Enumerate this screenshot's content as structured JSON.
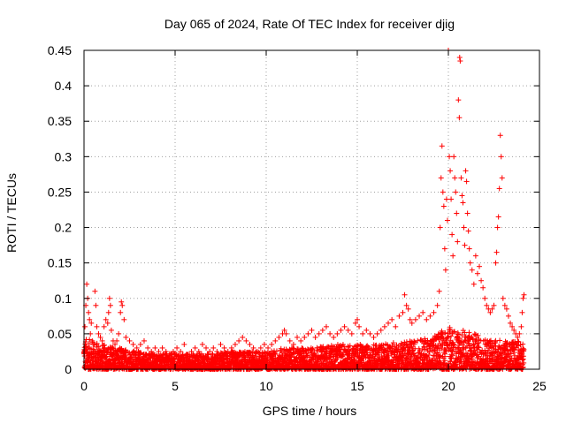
{
  "chart_data": {
    "type": "scatter",
    "title": "Day 065 of 2024, Rate Of TEC Index for receiver djig",
    "xlabel": "GPS time / hours",
    "ylabel": "ROTI / TECUs",
    "xlim": [
      0,
      25
    ],
    "ylim": [
      0,
      0.45
    ],
    "xticks": [
      0,
      5,
      10,
      15,
      20,
      25
    ],
    "xtick_labels": [
      "0",
      "5",
      "10",
      "15",
      "20",
      "25"
    ],
    "yticks": [
      0,
      0.05,
      0.1,
      0.15,
      0.2,
      0.25,
      0.3,
      0.35,
      0.4,
      0.45
    ],
    "ytick_labels": [
      "0",
      "0.05",
      "0.1",
      "0.15",
      "0.2",
      "0.25",
      "0.3",
      "0.35",
      "0.4",
      "0.45"
    ],
    "grid": true,
    "marker": "+",
    "color": "#ff0000",
    "series": [
      {
        "name": "ROTI",
        "points": [
          [
            0.05,
            0.06
          ],
          [
            0.1,
            0.09
          ],
          [
            0.15,
            0.12
          ],
          [
            0.2,
            0.1
          ],
          [
            0.25,
            0.08
          ],
          [
            0.3,
            0.07
          ],
          [
            0.35,
            0.05
          ],
          [
            0.4,
            0.065
          ],
          [
            0.45,
            0.04
          ],
          [
            0.5,
            0.035
          ],
          [
            0.6,
            0.11
          ],
          [
            0.65,
            0.09
          ],
          [
            0.7,
            0.06
          ],
          [
            0.8,
            0.05
          ],
          [
            0.9,
            0.045
          ],
          [
            1.0,
            0.04
          ],
          [
            1.1,
            0.06
          ],
          [
            1.2,
            0.07
          ],
          [
            1.3,
            0.065
          ],
          [
            1.35,
            0.08
          ],
          [
            1.4,
            0.1
          ],
          [
            1.45,
            0.09
          ],
          [
            1.5,
            0.055
          ],
          [
            1.6,
            0.04
          ],
          [
            1.7,
            0.035
          ],
          [
            1.8,
            0.04
          ],
          [
            1.9,
            0.05
          ],
          [
            2.0,
            0.08
          ],
          [
            2.05,
            0.095
          ],
          [
            2.1,
            0.09
          ],
          [
            2.2,
            0.07
          ],
          [
            2.3,
            0.045
          ],
          [
            2.5,
            0.04
          ],
          [
            2.7,
            0.035
          ],
          [
            2.9,
            0.03
          ],
          [
            3.1,
            0.035
          ],
          [
            3.3,
            0.04
          ],
          [
            3.5,
            0.03
          ],
          [
            3.7,
            0.025
          ],
          [
            3.9,
            0.03
          ],
          [
            4.1,
            0.025
          ],
          [
            4.3,
            0.03
          ],
          [
            4.5,
            0.025
          ],
          [
            4.7,
            0.02
          ],
          [
            4.9,
            0.025
          ],
          [
            5.1,
            0.03
          ],
          [
            5.3,
            0.025
          ],
          [
            5.5,
            0.035
          ],
          [
            5.7,
            0.02
          ],
          [
            5.9,
            0.025
          ],
          [
            6.1,
            0.03
          ],
          [
            6.3,
            0.025
          ],
          [
            6.5,
            0.035
          ],
          [
            6.7,
            0.03
          ],
          [
            6.9,
            0.025
          ],
          [
            7.1,
            0.03
          ],
          [
            7.3,
            0.025
          ],
          [
            7.5,
            0.035
          ],
          [
            7.7,
            0.03
          ],
          [
            7.9,
            0.025
          ],
          [
            8.1,
            0.03
          ],
          [
            8.3,
            0.035
          ],
          [
            8.5,
            0.04
          ],
          [
            8.7,
            0.045
          ],
          [
            8.9,
            0.04
          ],
          [
            9.1,
            0.035
          ],
          [
            9.3,
            0.03
          ],
          [
            9.5,
            0.025
          ],
          [
            9.7,
            0.03
          ],
          [
            9.9,
            0.035
          ],
          [
            10.1,
            0.03
          ],
          [
            10.3,
            0.035
          ],
          [
            10.5,
            0.04
          ],
          [
            10.7,
            0.045
          ],
          [
            10.9,
            0.05
          ],
          [
            11.0,
            0.055
          ],
          [
            11.1,
            0.05
          ],
          [
            11.3,
            0.04
          ],
          [
            11.5,
            0.035
          ],
          [
            11.7,
            0.045
          ],
          [
            11.9,
            0.04
          ],
          [
            12.1,
            0.045
          ],
          [
            12.3,
            0.05
          ],
          [
            12.5,
            0.055
          ],
          [
            12.7,
            0.045
          ],
          [
            12.9,
            0.05
          ],
          [
            13.1,
            0.055
          ],
          [
            13.3,
            0.06
          ],
          [
            13.5,
            0.05
          ],
          [
            13.7,
            0.045
          ],
          [
            13.9,
            0.05
          ],
          [
            14.1,
            0.055
          ],
          [
            14.3,
            0.06
          ],
          [
            14.5,
            0.055
          ],
          [
            14.7,
            0.05
          ],
          [
            14.9,
            0.065
          ],
          [
            15.0,
            0.07
          ],
          [
            15.1,
            0.06
          ],
          [
            15.3,
            0.05
          ],
          [
            15.5,
            0.055
          ],
          [
            15.7,
            0.05
          ],
          [
            15.9,
            0.045
          ],
          [
            16.1,
            0.05
          ],
          [
            16.3,
            0.055
          ],
          [
            16.5,
            0.06
          ],
          [
            16.7,
            0.065
          ],
          [
            16.9,
            0.07
          ],
          [
            17.1,
            0.06
          ],
          [
            17.3,
            0.075
          ],
          [
            17.5,
            0.08
          ],
          [
            17.6,
            0.105
          ],
          [
            17.7,
            0.09
          ],
          [
            17.8,
            0.085
          ],
          [
            17.9,
            0.07
          ],
          [
            18.0,
            0.065
          ],
          [
            18.2,
            0.07
          ],
          [
            18.4,
            0.075
          ],
          [
            18.6,
            0.08
          ],
          [
            18.8,
            0.07
          ],
          [
            19.0,
            0.075
          ],
          [
            19.2,
            0.08
          ],
          [
            19.4,
            0.09
          ],
          [
            19.5,
            0.11
          ],
          [
            19.55,
            0.2
          ],
          [
            19.6,
            0.27
          ],
          [
            19.65,
            0.315
          ],
          [
            19.7,
            0.25
          ],
          [
            19.75,
            0.23
          ],
          [
            19.8,
            0.17
          ],
          [
            19.85,
            0.14
          ],
          [
            19.9,
            0.24
          ],
          [
            19.95,
            0.21
          ],
          [
            20.0,
            0.45
          ],
          [
            20.05,
            0.3
          ],
          [
            20.1,
            0.28
          ],
          [
            20.15,
            0.24
          ],
          [
            20.2,
            0.19
          ],
          [
            20.25,
            0.16
          ],
          [
            20.3,
            0.3
          ],
          [
            20.35,
            0.27
          ],
          [
            20.4,
            0.25
          ],
          [
            20.45,
            0.22
          ],
          [
            20.5,
            0.18
          ],
          [
            20.55,
            0.38
          ],
          [
            20.6,
            0.355
          ],
          [
            20.62,
            0.44
          ],
          [
            20.65,
            0.435
          ],
          [
            20.7,
            0.27
          ],
          [
            20.75,
            0.245
          ],
          [
            20.8,
            0.235
          ],
          [
            20.85,
            0.2
          ],
          [
            20.9,
            0.175
          ],
          [
            20.95,
            0.28
          ],
          [
            21.0,
            0.265
          ],
          [
            21.05,
            0.22
          ],
          [
            21.1,
            0.195
          ],
          [
            21.15,
            0.17
          ],
          [
            21.2,
            0.15
          ],
          [
            21.3,
            0.14
          ],
          [
            21.4,
            0.12
          ],
          [
            21.5,
            0.16
          ],
          [
            21.6,
            0.135
          ],
          [
            21.7,
            0.145
          ],
          [
            21.8,
            0.125
          ],
          [
            21.9,
            0.115
          ],
          [
            22.0,
            0.1
          ],
          [
            22.1,
            0.09
          ],
          [
            22.2,
            0.085
          ],
          [
            22.3,
            0.08
          ],
          [
            22.4,
            0.085
          ],
          [
            22.5,
            0.09
          ],
          [
            22.6,
            0.15
          ],
          [
            22.65,
            0.165
          ],
          [
            22.7,
            0.2
          ],
          [
            22.75,
            0.215
          ],
          [
            22.8,
            0.255
          ],
          [
            22.85,
            0.33
          ],
          [
            22.9,
            0.3
          ],
          [
            22.95,
            0.27
          ],
          [
            23.0,
            0.1
          ],
          [
            23.1,
            0.09
          ],
          [
            23.2,
            0.085
          ],
          [
            23.3,
            0.075
          ],
          [
            23.4,
            0.065
          ],
          [
            23.5,
            0.06
          ],
          [
            23.6,
            0.055
          ],
          [
            23.7,
            0.05
          ],
          [
            23.8,
            0.045
          ],
          [
            23.9,
            0.05
          ],
          [
            24.0,
            0.06
          ],
          [
            24.05,
            0.08
          ],
          [
            24.1,
            0.1
          ],
          [
            24.15,
            0.105
          ]
        ]
      }
    ],
    "baseline_band": [
      [
        0.0,
        0.045
      ],
      [
        0.5,
        0.04
      ],
      [
        1.0,
        0.035
      ],
      [
        2.0,
        0.03
      ],
      [
        3.0,
        0.025
      ],
      [
        4.0,
        0.022
      ],
      [
        5.0,
        0.022
      ],
      [
        6.0,
        0.022
      ],
      [
        7.0,
        0.022
      ],
      [
        8.0,
        0.025
      ],
      [
        9.0,
        0.025
      ],
      [
        10.0,
        0.025
      ],
      [
        11.0,
        0.03
      ],
      [
        12.0,
        0.03
      ],
      [
        13.0,
        0.032
      ],
      [
        14.0,
        0.035
      ],
      [
        15.0,
        0.035
      ],
      [
        16.0,
        0.035
      ],
      [
        17.0,
        0.038
      ],
      [
        18.0,
        0.04
      ],
      [
        19.0,
        0.045
      ],
      [
        20.0,
        0.06
      ],
      [
        21.0,
        0.055
      ],
      [
        22.0,
        0.045
      ],
      [
        23.0,
        0.04
      ],
      [
        24.1,
        0.04
      ]
    ]
  }
}
